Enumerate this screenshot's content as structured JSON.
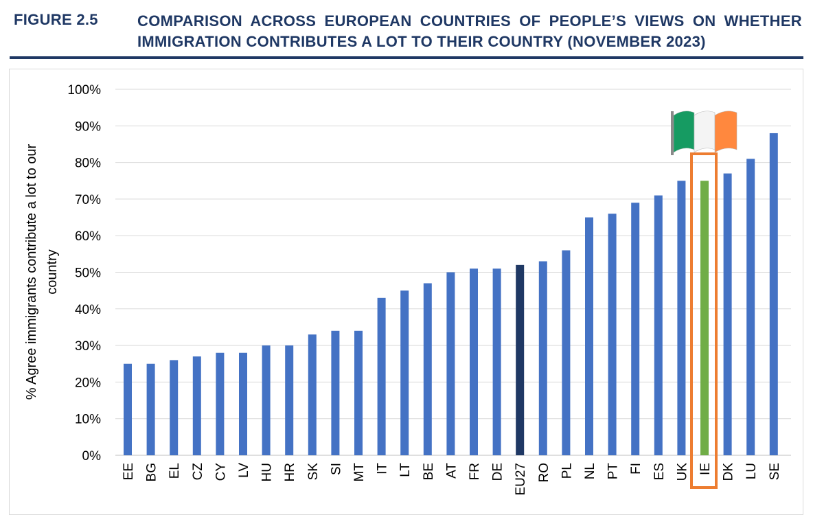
{
  "header": {
    "figure_label": "FIGURE 2.5",
    "title": "COMPARISON ACROSS EUROPEAN COUNTRIES OF PEOPLE’S VIEWS ON WHETHER IMMIGRATION CONTRIBUTES A LOT TO THEIR COUNTRY (NOVEMBER 2023)"
  },
  "colors": {
    "bar_default": "#4472c4",
    "bar_eu": "#1f3864",
    "bar_highlight": "#70ad47",
    "highlight_border": "#ed7d31",
    "title": "#1f3864",
    "grid": "#d9d9d9"
  },
  "chart_data": {
    "type": "bar",
    "title": "",
    "xlabel": "",
    "ylabel": "% Agree immigrants contribute a lot to our country",
    "ylim": [
      0,
      100
    ],
    "yticks": [
      "0%",
      "10%",
      "20%",
      "30%",
      "40%",
      "50%",
      "60%",
      "70%",
      "80%",
      "90%",
      "100%"
    ],
    "categories": [
      "EE",
      "BG",
      "EL",
      "CZ",
      "CY",
      "LV",
      "HU",
      "HR",
      "SK",
      "SI",
      "MT",
      "IT",
      "LT",
      "BE",
      "AT",
      "FR",
      "DE",
      "EU27",
      "RO",
      "PL",
      "NL",
      "PT",
      "FI",
      "ES",
      "UK",
      "IE",
      "DK",
      "LU",
      "SE"
    ],
    "values": [
      25,
      25,
      26,
      27,
      28,
      28,
      30,
      30,
      33,
      34,
      34,
      43,
      45,
      47,
      50,
      51,
      51,
      52,
      53,
      56,
      65,
      66,
      69,
      71,
      75,
      75,
      77,
      81,
      88
    ],
    "average_category": "EU27",
    "highlight_category": "IE",
    "highlight_icon": "irish-flag-icon"
  }
}
